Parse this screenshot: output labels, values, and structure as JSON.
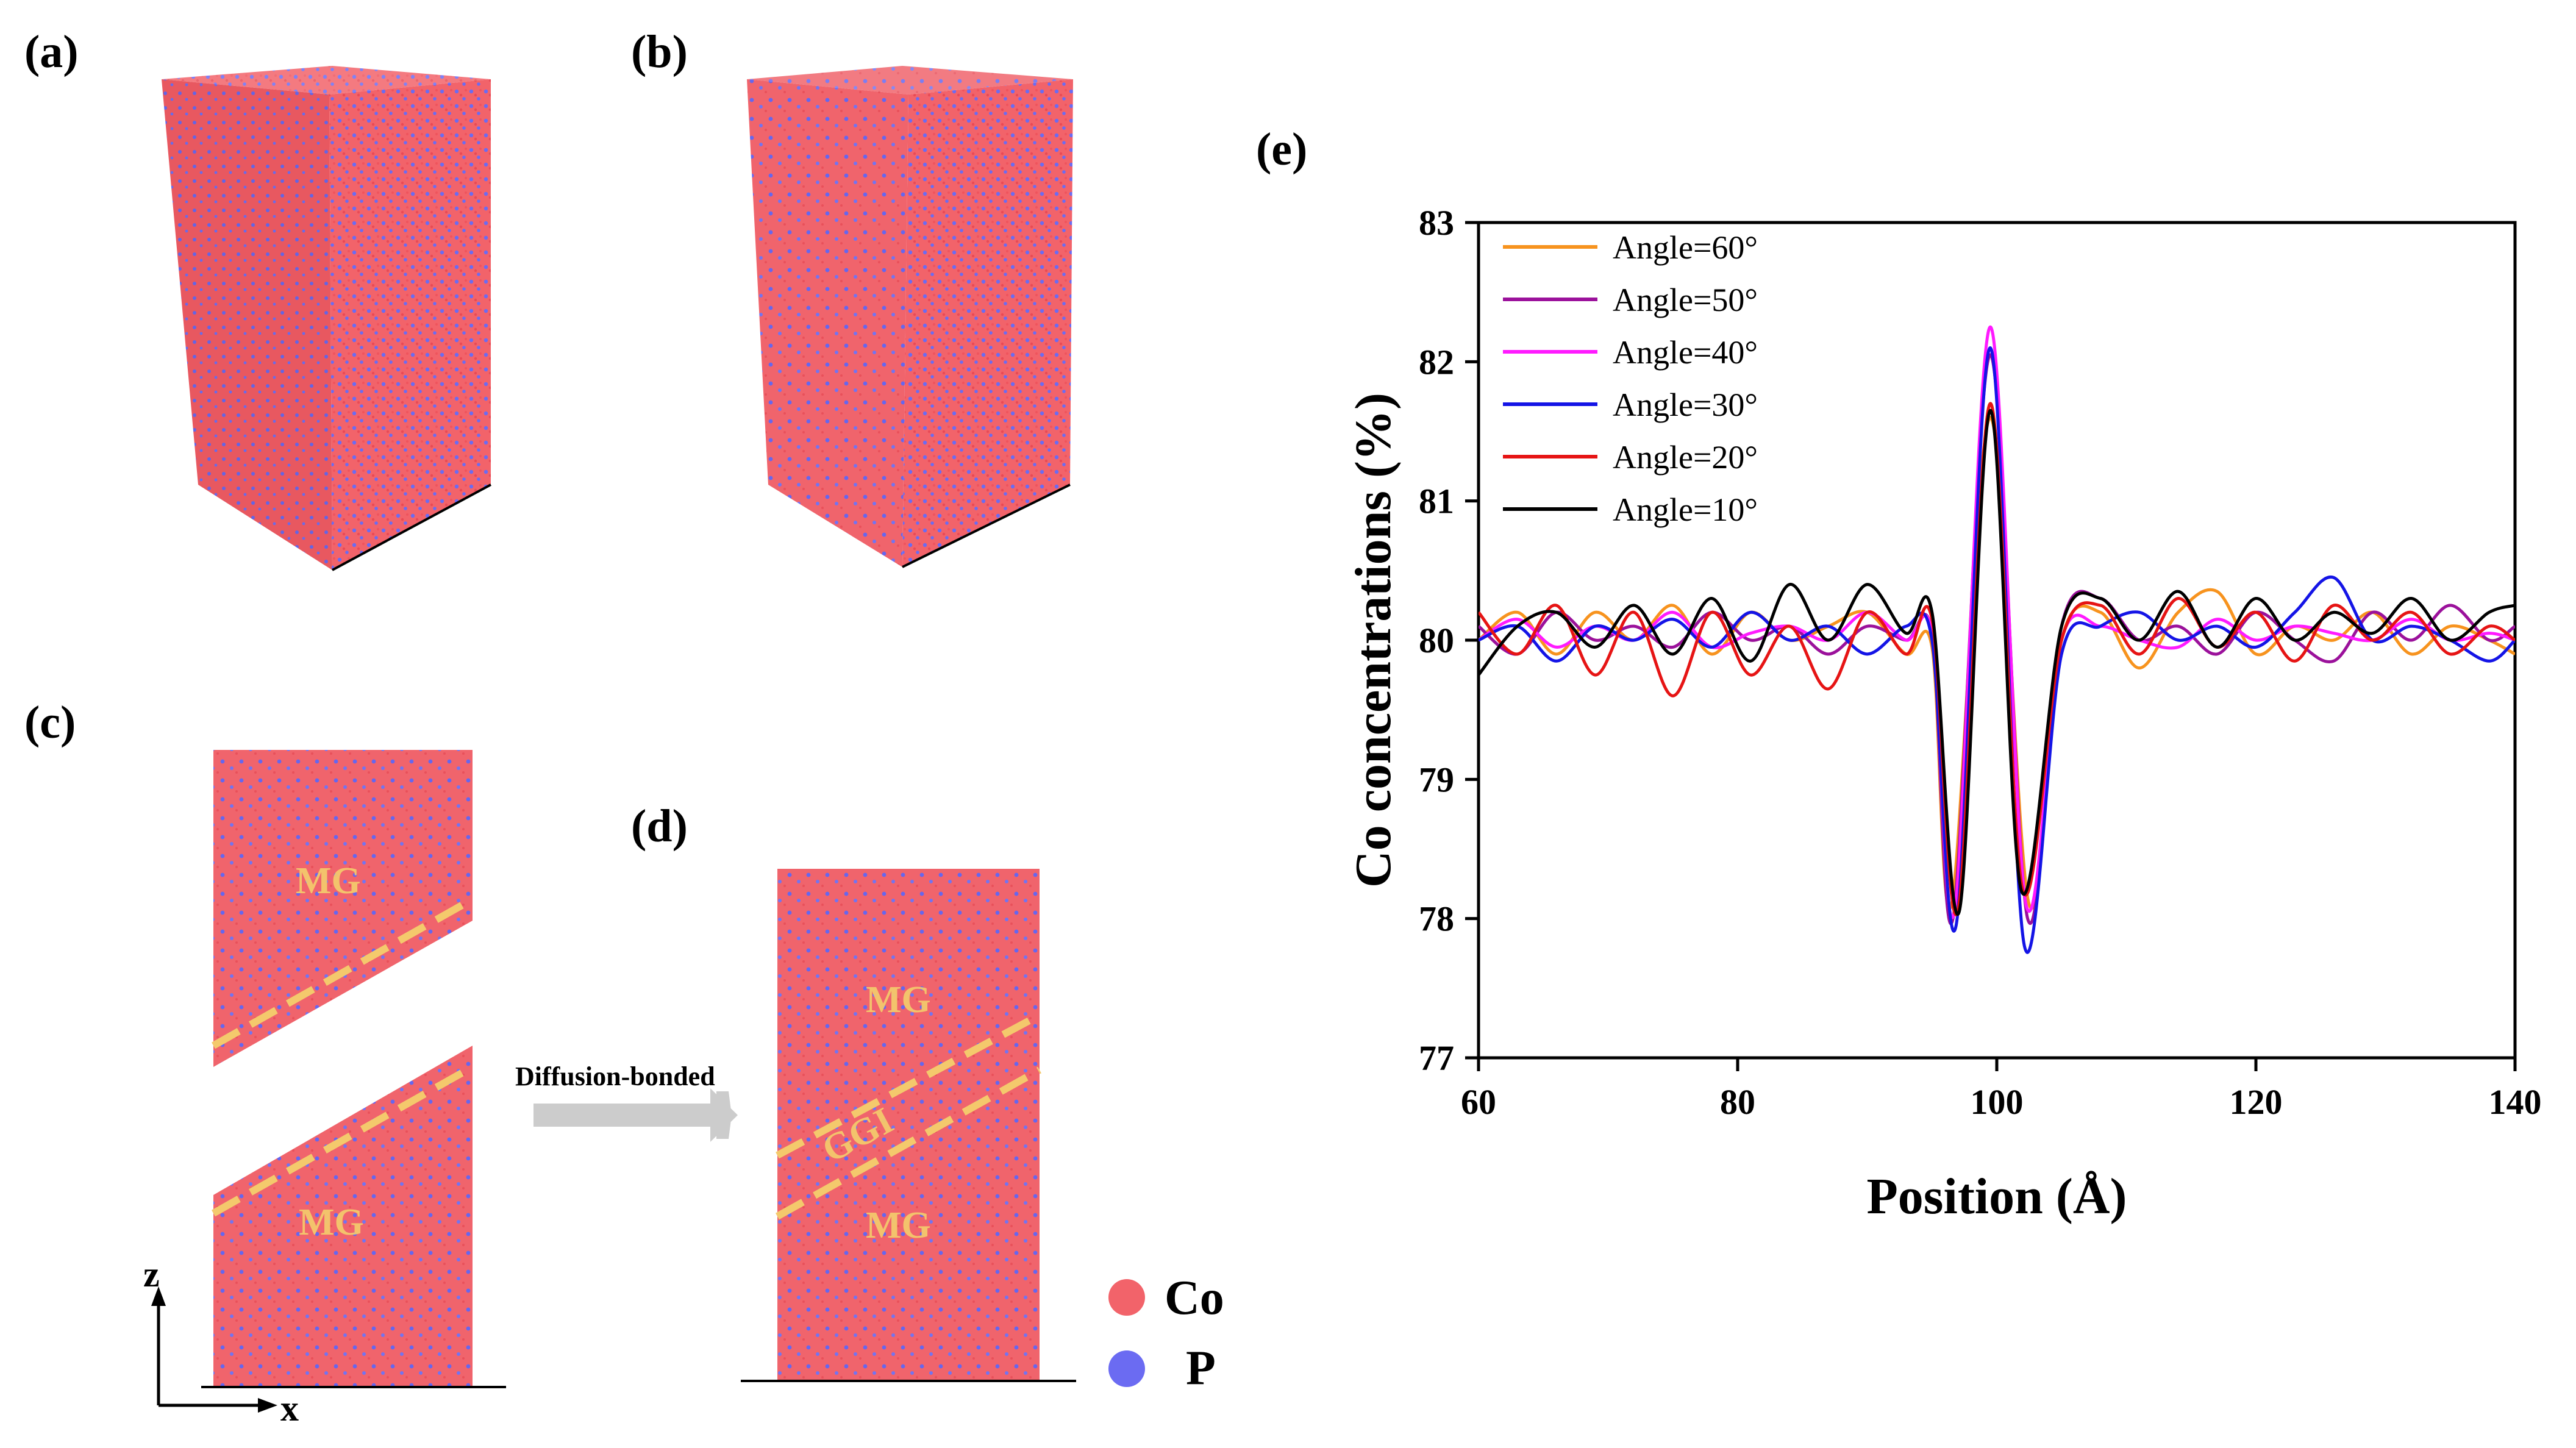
{
  "panels": {
    "a": "(a)",
    "b": "(b)",
    "c": "(c)",
    "d": "(d)",
    "e": "(e)"
  },
  "panel_c": {
    "top_region": "MG",
    "bottom_region": "MG",
    "axis_z": "z",
    "axis_x": "x"
  },
  "arrow_label": "Diffusion-bonded",
  "panel_d": {
    "top_region": "MG",
    "interface_region": "GGI",
    "bottom_region": "MG"
  },
  "atom_legend": [
    {
      "label": "Co",
      "color": "#f2636a"
    },
    {
      "label": "P",
      "color": "#6b6bf2"
    }
  ],
  "colors": {
    "co_atom": "#f2636a",
    "p_atom": "#6b6bf2",
    "interface_line": "#f4c96c",
    "arrow": "#cccccc"
  },
  "chart_data": {
    "type": "line",
    "title": "",
    "xlabel": "Position (Å)",
    "ylabel": "Co concentrations (%)",
    "xlim": [
      60,
      140
    ],
    "ylim": [
      77,
      83
    ],
    "xticks": [
      60,
      80,
      100,
      120,
      140
    ],
    "yticks": [
      77,
      78,
      79,
      80,
      81,
      82,
      83
    ],
    "legend_position": "top-left",
    "series": [
      {
        "name": "Angle=60°",
        "color": "#f7931e",
        "min_left": 78.1,
        "peak": 81.6,
        "min_right": 78.1,
        "x": [
          60,
          63,
          66,
          69,
          72,
          75,
          78,
          81,
          84,
          87,
          90,
          93,
          95
        ],
        "y": [
          80.0,
          80.2,
          79.9,
          80.2,
          80.0,
          80.25,
          79.9,
          80.2,
          80.0,
          80.1,
          80.2,
          79.9,
          79.95
        ],
        "x2": [
          105,
          108,
          111,
          114,
          117,
          120,
          123,
          126,
          129,
          132,
          135,
          138,
          140
        ],
        "y2": [
          80.0,
          80.2,
          79.8,
          80.2,
          80.35,
          79.9,
          80.1,
          80.0,
          80.2,
          79.9,
          80.1,
          80.0,
          79.9
        ]
      },
      {
        "name": "Angle=50°",
        "color": "#9b119b",
        "min_left": 78.0,
        "peak": 82.05,
        "min_right": 78.0,
        "x": [
          60,
          63,
          66,
          69,
          72,
          75,
          78,
          81,
          84,
          87,
          90,
          93,
          95
        ],
        "y": [
          80.1,
          79.9,
          80.2,
          80.0,
          80.1,
          79.95,
          80.2,
          80.0,
          80.1,
          79.9,
          80.1,
          80.0,
          80.05
        ],
        "x2": [
          105,
          108,
          111,
          114,
          117,
          120,
          123,
          126,
          129,
          132,
          135,
          138,
          140
        ],
        "y2": [
          80.1,
          80.3,
          80.0,
          80.1,
          79.9,
          80.2,
          80.0,
          79.85,
          80.2,
          80.0,
          80.25,
          80.0,
          80.1
        ]
      },
      {
        "name": "Angle=40°",
        "color": "#ff1aff",
        "min_left": 78.05,
        "peak": 82.25,
        "min_right": 78.1,
        "x": [
          60,
          63,
          66,
          69,
          72,
          75,
          78,
          81,
          84,
          87,
          90,
          93,
          95
        ],
        "y": [
          80.0,
          80.15,
          79.95,
          80.1,
          80.0,
          80.2,
          79.95,
          80.05,
          80.1,
          80.0,
          80.2,
          80.0,
          80.05
        ],
        "x2": [
          105,
          108,
          111,
          114,
          117,
          120,
          123,
          126,
          129,
          132,
          135,
          138,
          140
        ],
        "y2": [
          80.0,
          80.1,
          80.0,
          79.95,
          80.15,
          80.0,
          80.1,
          80.05,
          80.0,
          80.15,
          80.0,
          80.05,
          80.0
        ]
      },
      {
        "name": "Angle=30°",
        "color": "#1414e6",
        "min_left": 77.95,
        "peak": 82.1,
        "min_right": 77.8,
        "x": [
          60,
          63,
          66,
          69,
          72,
          75,
          78,
          81,
          84,
          87,
          90,
          93,
          95
        ],
        "y": [
          80.0,
          80.1,
          79.85,
          80.1,
          80.0,
          80.15,
          79.95,
          80.2,
          80.0,
          80.1,
          79.9,
          80.1,
          80.0
        ],
        "x2": [
          105,
          108,
          111,
          114,
          117,
          120,
          123,
          126,
          129,
          132,
          135,
          138,
          140
        ],
        "y2": [
          79.9,
          80.1,
          80.2,
          80.0,
          80.1,
          79.95,
          80.2,
          80.45,
          80.0,
          80.1,
          80.0,
          79.85,
          80.0
        ]
      },
      {
        "name": "Angle=20°",
        "color": "#e61414",
        "min_left": 78.05,
        "peak": 81.7,
        "min_right": 78.2,
        "x": [
          60,
          63,
          66,
          69,
          72,
          75,
          78,
          81,
          84,
          87,
          90,
          93,
          95
        ],
        "y": [
          80.2,
          79.9,
          80.25,
          79.75,
          80.2,
          79.6,
          80.2,
          79.75,
          80.1,
          79.65,
          80.2,
          79.9,
          80.15
        ],
        "x2": [
          105,
          108,
          111,
          114,
          117,
          120,
          123,
          126,
          129,
          132,
          135,
          138,
          140
        ],
        "y2": [
          80.0,
          80.25,
          79.9,
          80.3,
          79.95,
          80.2,
          79.85,
          80.25,
          80.0,
          80.2,
          79.9,
          80.1,
          80.0
        ]
      },
      {
        "name": "Angle=10°",
        "color": "#000000",
        "min_left": 78.05,
        "peak": 81.65,
        "min_right": 78.2,
        "x": [
          60,
          63,
          66,
          69,
          72,
          75,
          78,
          81,
          84,
          87,
          90,
          93,
          95
        ],
        "y": [
          79.75,
          80.1,
          80.2,
          79.95,
          80.25,
          79.9,
          80.3,
          79.85,
          80.4,
          80.0,
          80.4,
          80.05,
          80.2
        ],
        "x2": [
          105,
          108,
          111,
          114,
          117,
          120,
          123,
          126,
          129,
          132,
          135,
          138,
          140
        ],
        "y2": [
          80.1,
          80.3,
          80.0,
          80.35,
          79.95,
          80.3,
          80.0,
          80.2,
          80.05,
          80.3,
          80.0,
          80.2,
          80.25
        ]
      }
    ]
  }
}
